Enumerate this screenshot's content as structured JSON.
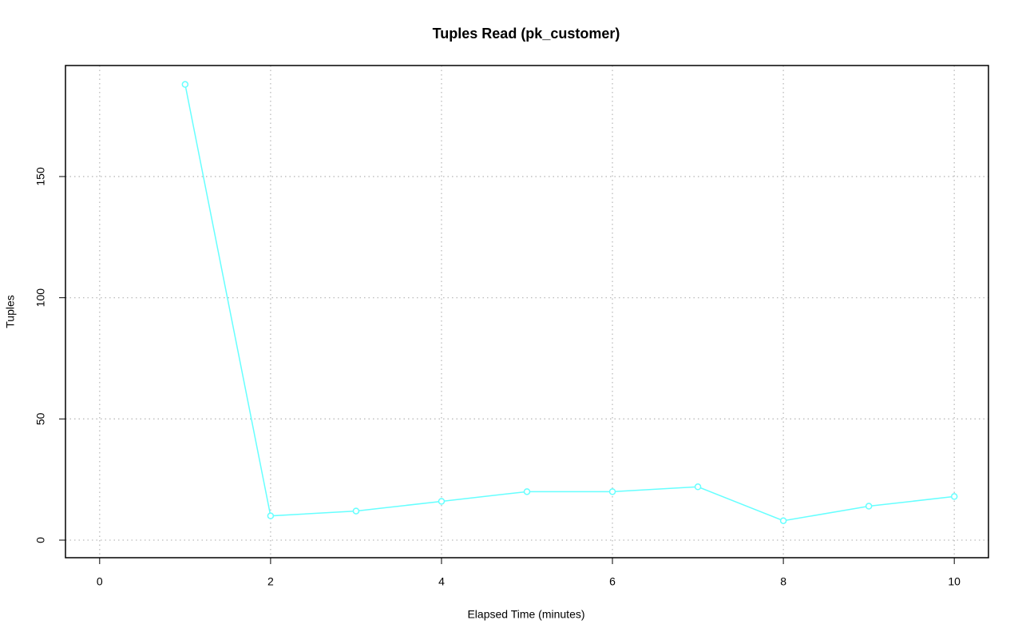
{
  "chart_data": {
    "type": "line",
    "title": "Tuples Read (pk_customer)",
    "x_label": "Elapsed Time (minutes)",
    "y_label": "Tuples",
    "x": [
      1,
      2,
      3,
      4,
      5,
      6,
      7,
      8,
      9,
      10
    ],
    "values": [
      188,
      10,
      12,
      16,
      20,
      20,
      22,
      8,
      14,
      18
    ],
    "color": "#66ffff",
    "xlim": [
      -0.4,
      10.4
    ],
    "xticks": [
      0,
      2,
      4,
      6,
      8,
      10
    ],
    "ylim": [
      -7.25,
      195.8
    ],
    "yticks": [
      0,
      50,
      100,
      150
    ],
    "grid": true
  }
}
